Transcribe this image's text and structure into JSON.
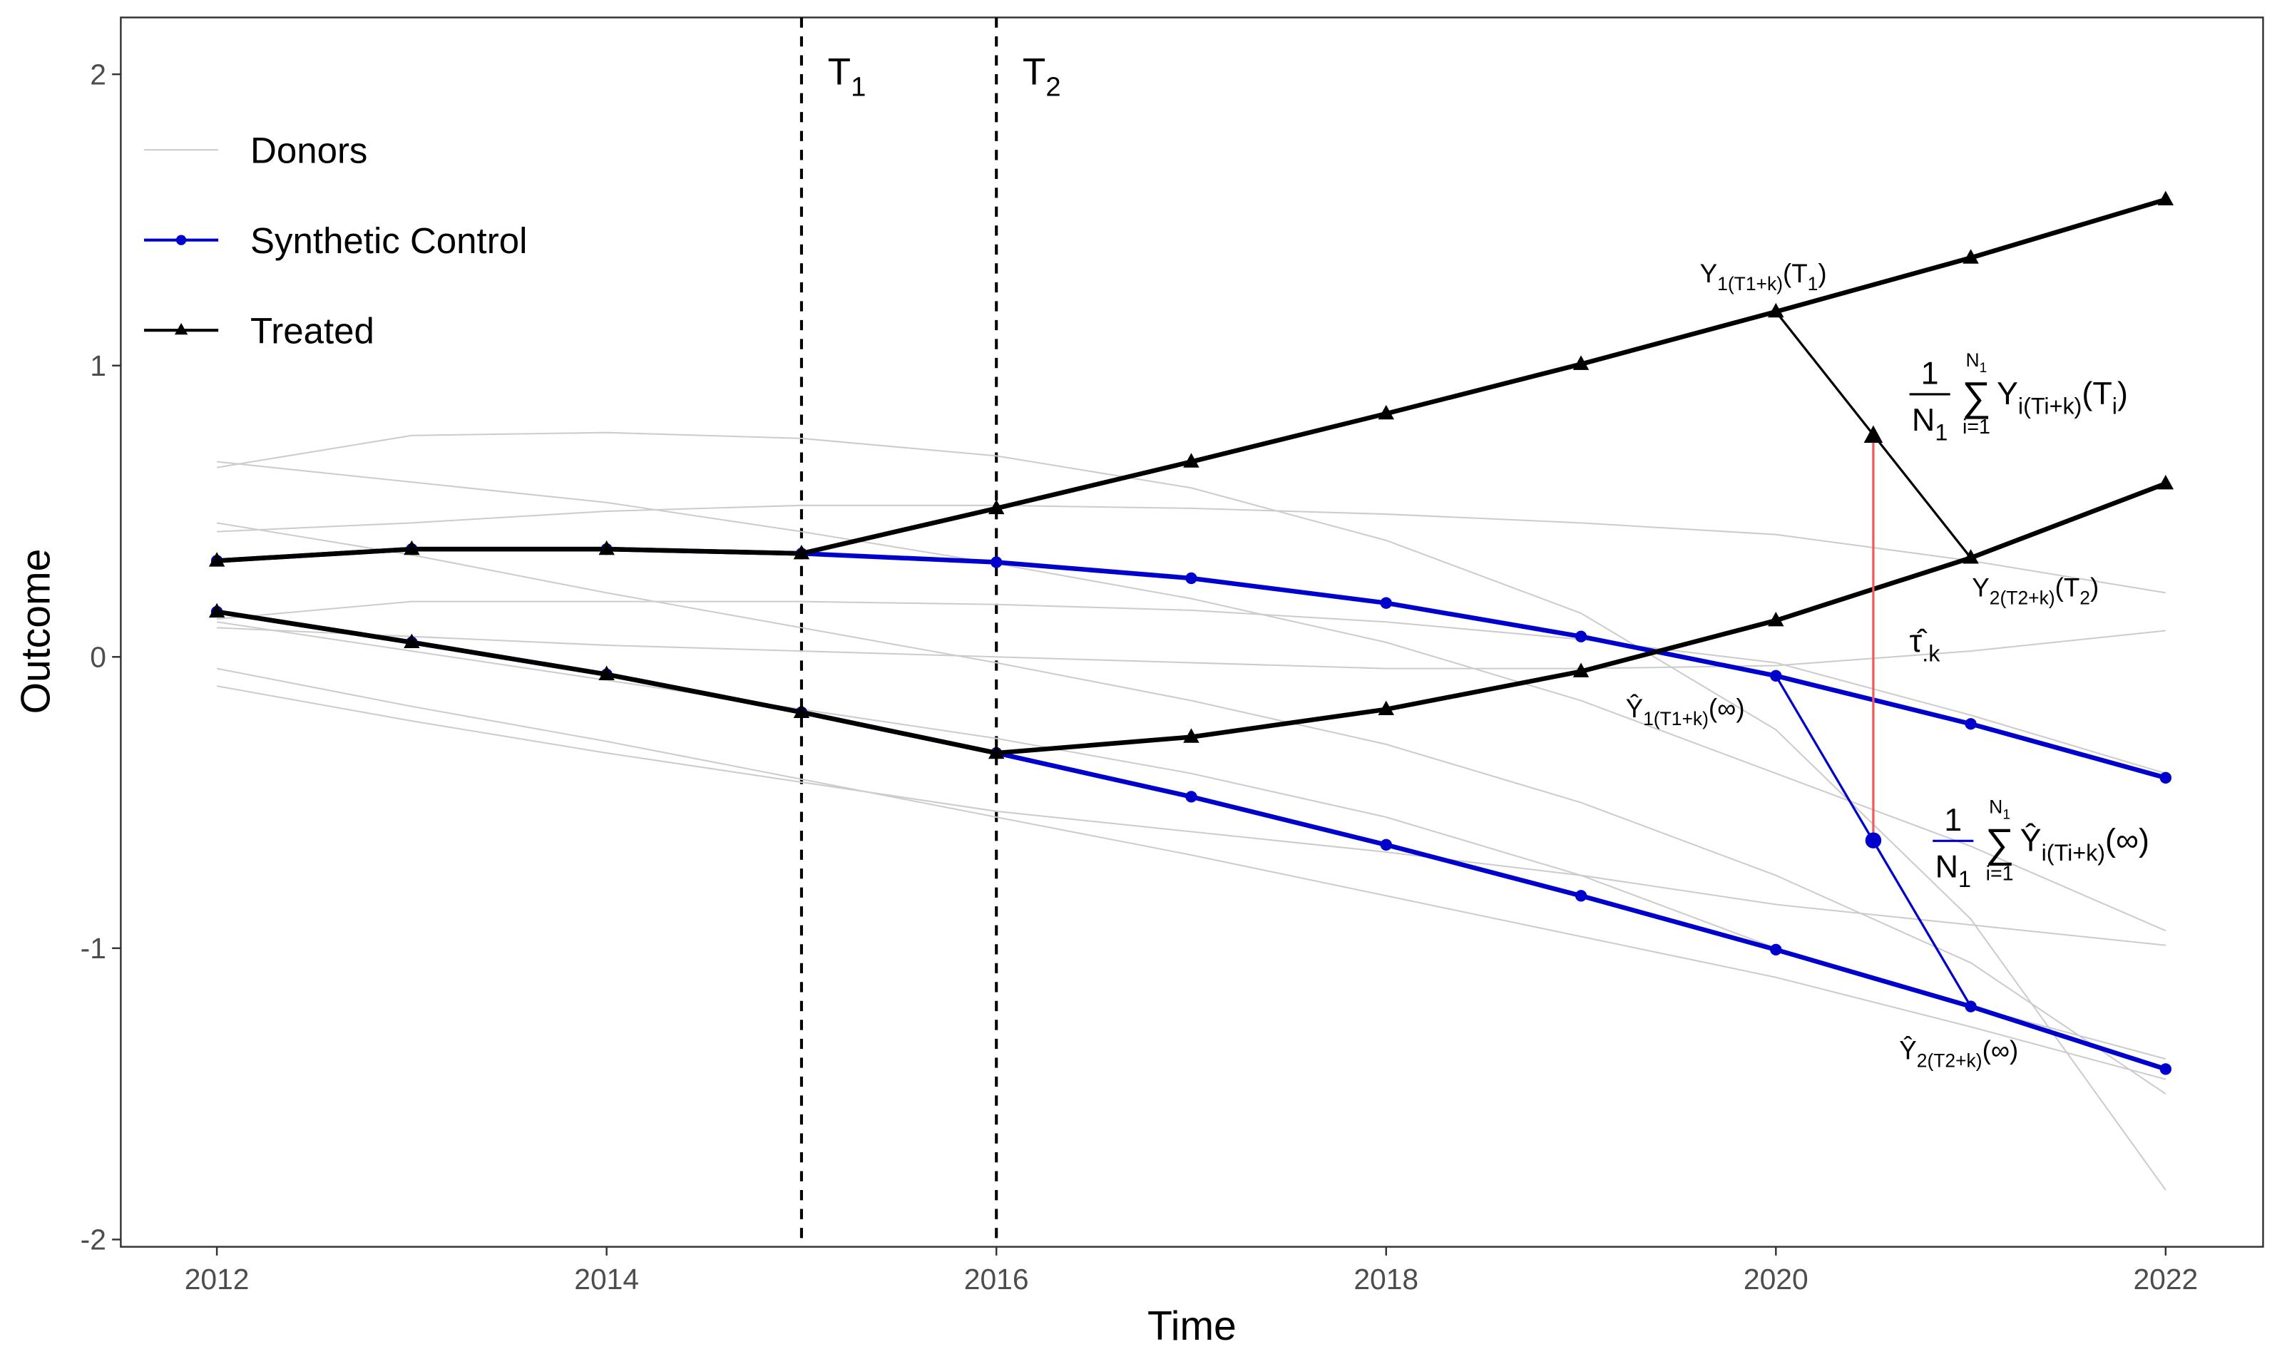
{
  "chart_data": {
    "type": "line",
    "x_label": "Time",
    "y_label": "Outcome",
    "x": [
      2012,
      2013,
      2014,
      2015,
      2016,
      2017,
      2018,
      2019,
      2020,
      2021,
      2022
    ],
    "xlim": [
      2011.507,
      2022.5
    ],
    "ylim": [
      -2.025,
      2.195
    ],
    "xticks": [
      2012,
      2014,
      2016,
      2018,
      2020,
      2022
    ],
    "yticks": [
      -2,
      -1,
      0,
      1,
      2
    ],
    "grid": false,
    "legend": "top-left",
    "series": [
      {
        "name": "Donors",
        "color": "#cccccc",
        "marker": "none",
        "values": [
          [
            0.67,
            0.6,
            0.53,
            0.43,
            0.32,
            0.2,
            0.05,
            -0.15,
            -0.4,
            -0.65,
            -0.94
          ],
          [
            0.65,
            0.76,
            0.77,
            0.75,
            0.69,
            0.58,
            0.4,
            0.15,
            -0.25,
            -0.9,
            -1.83
          ],
          [
            0.46,
            0.35,
            0.22,
            0.1,
            -0.02,
            -0.15,
            -0.3,
            -0.5,
            -0.75,
            -1.05,
            -1.5
          ],
          [
            0.43,
            0.46,
            0.5,
            0.52,
            0.52,
            0.51,
            0.49,
            0.46,
            0.42,
            0.33,
            0.22
          ],
          [
            0.13,
            0.19,
            0.19,
            0.19,
            0.18,
            0.16,
            0.12,
            0.06,
            -0.02,
            -0.2,
            -0.4
          ],
          [
            0.1,
            0.07,
            0.04,
            0.02,
            0.0,
            -0.02,
            -0.04,
            -0.04,
            -0.03,
            0.02,
            0.09
          ],
          [
            -0.04,
            -0.17,
            -0.29,
            -0.42,
            -0.55,
            -0.68,
            -0.82,
            -0.96,
            -1.1,
            -1.27,
            -1.45
          ],
          [
            -0.1,
            -0.22,
            -0.33,
            -0.43,
            -0.53,
            -0.6,
            -0.67,
            -0.75,
            -0.85,
            -0.92,
            -0.99
          ],
          [
            0.12,
            0.02,
            -0.08,
            -0.18,
            -0.28,
            -0.4,
            -0.55,
            -0.75,
            -1.0,
            -1.2,
            -1.38
          ]
        ]
      },
      {
        "name": "Synthetic Control",
        "color": "#0000cd",
        "marker": "circle",
        "values": [
          [
            0.33,
            0.37,
            0.37,
            0.355,
            0.325,
            0.27,
            0.185,
            0.07,
            -0.065,
            -0.23,
            -0.415
          ],
          [
            0.155,
            0.05,
            -0.06,
            -0.19,
            -0.33,
            -0.48,
            -0.645,
            -0.82,
            -1.005,
            -1.2,
            -1.415
          ]
        ]
      },
      {
        "name": "Treated",
        "color": "#000000",
        "marker": "triangle",
        "values": [
          [
            0.33,
            0.37,
            0.37,
            0.355,
            0.51,
            0.67,
            0.835,
            1.005,
            1.185,
            1.37,
            1.57
          ],
          [
            0.155,
            0.05,
            -0.06,
            -0.19,
            -0.33,
            -0.275,
            -0.18,
            -0.05,
            0.125,
            0.34,
            0.595
          ]
        ]
      }
    ],
    "vlines": [
      {
        "x": 2015,
        "label": [
          {
            "text": "T"
          },
          {
            "text": "1",
            "sub": true
          }
        ]
      },
      {
        "x": 2016,
        "label": [
          {
            "text": "T"
          },
          {
            "text": "2",
            "sub": true
          }
        ]
      }
    ],
    "average": {
      "x": 2020.5,
      "treated": 0.76,
      "synthetic": -0.63,
      "color": "#f25b5b"
    },
    "annotations": [
      {
        "color": "#000000",
        "parts": [
          {
            "text": "Y"
          },
          {
            "text": "1(T1+k)",
            "sub": true
          },
          {
            "text": "(T"
          },
          {
            "text": "1",
            "sub": true
          },
          {
            "text": ")"
          }
        ]
      },
      {
        "color": "#000000",
        "parts": [
          {
            "text": "Y"
          },
          {
            "text": "2(T2+k)",
            "sub": true
          },
          {
            "text": "(T"
          },
          {
            "text": "2",
            "sub": true
          },
          {
            "text": ")"
          }
        ]
      },
      {
        "color": "#0000cd",
        "parts": [
          {
            "text": "Ŷ"
          },
          {
            "text": "1(T1+k)",
            "sub": true
          },
          {
            "text": "(∞)"
          }
        ]
      },
      {
        "color": "#0000cd",
        "parts": [
          {
            "text": "Ŷ"
          },
          {
            "text": "2(T2+k)",
            "sub": true
          },
          {
            "text": "(∞)"
          }
        ]
      },
      {
        "color": "#f25b5b",
        "parts": [
          {
            "text": "τ̂"
          },
          {
            "text": ".k",
            "sub": true
          }
        ]
      }
    ],
    "formulas": [
      {
        "color": "#000000",
        "numerator": "1",
        "denominator": [
          {
            "text": "N"
          },
          {
            "text": "1",
            "sub": true
          }
        ],
        "sum": "∑",
        "upper": [
          {
            "text": "N"
          },
          {
            "text": "1",
            "sub": true
          }
        ],
        "lower": "i=1",
        "body": [
          {
            "text": "Y"
          },
          {
            "text": "i(Ti+k)",
            "sub": true
          },
          {
            "text": "(T"
          },
          {
            "text": "i",
            "sub": true
          },
          {
            "text": ")"
          }
        ]
      },
      {
        "color": "#0000cd",
        "numerator": "1",
        "denominator": [
          {
            "text": "N"
          },
          {
            "text": "1",
            "sub": true
          }
        ],
        "sum": "∑",
        "upper": [
          {
            "text": "N"
          },
          {
            "text": "1",
            "sub": true
          }
        ],
        "lower": "i=1",
        "body": [
          {
            "text": "Ŷ"
          },
          {
            "text": "i(Ti+k)",
            "sub": true
          },
          {
            "text": "(∞)"
          }
        ]
      }
    ]
  }
}
